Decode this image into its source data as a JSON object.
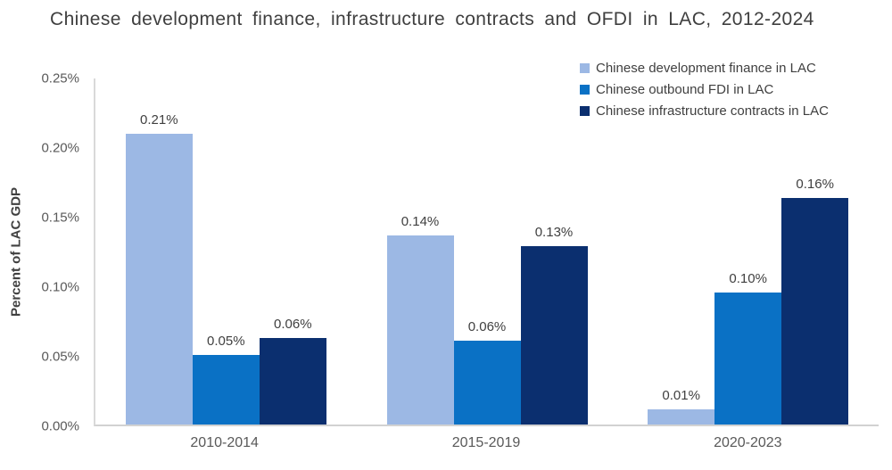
{
  "chart_data": {
    "type": "bar",
    "title": "Chinese development finance, infrastructure contracts and OFDI in LAC, 2012-2024",
    "ylabel": "Percent of LAC GDP",
    "xlabel": "",
    "ylim": [
      0,
      0.25
    ],
    "grid": false,
    "legend_position": "top-right",
    "yticks": [
      {
        "value": 0.25,
        "label": "0.25%"
      },
      {
        "value": 0.2,
        "label": "0.20%"
      },
      {
        "value": 0.15,
        "label": "0.15%"
      },
      {
        "value": 0.1,
        "label": "0.10%"
      },
      {
        "value": 0.05,
        "label": "0.05%"
      },
      {
        "value": 0.0,
        "label": "0.00%"
      }
    ],
    "categories": [
      "2010-2014",
      "2015-2019",
      "2020-2023"
    ],
    "series": [
      {
        "name": "Chinese development finance in LAC",
        "color": "#9cb8e4",
        "values": [
          0.209,
          0.136,
          0.011
        ],
        "labels": [
          "0.21%",
          "0.14%",
          "0.01%"
        ]
      },
      {
        "name": "Chinese outbound FDI in LAC",
        "color": "#0a71c5",
        "values": [
          0.05,
          0.06,
          0.095
        ],
        "labels": [
          "0.05%",
          "0.06%",
          "0.10%"
        ]
      },
      {
        "name": "Chinese infrastructure contracts in LAC",
        "color": "#0b2f6f",
        "values": [
          0.062,
          0.128,
          0.163
        ],
        "labels": [
          "0.06%",
          "0.13%",
          "0.16%"
        ]
      }
    ]
  },
  "colors": {
    "axis_line": "#d9d9d9",
    "title_text": "#3f3f3f",
    "tick_text": "#595959",
    "label_text": "#404040"
  }
}
